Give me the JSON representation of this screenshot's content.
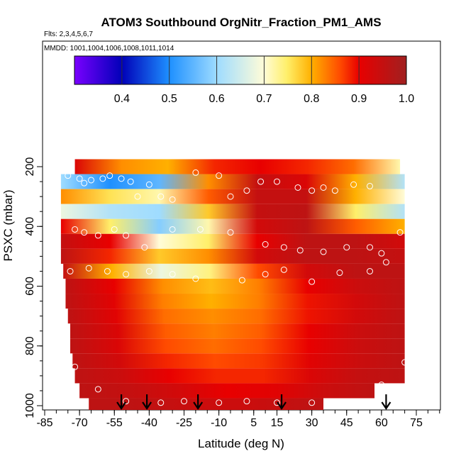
{
  "chart_data": {
    "type": "heatmap",
    "title": "ATOM3 Southbound OrgNitr_Fraction_PM1_AMS",
    "subtitle_flights": "Flts: 2,3,4,5,6,7",
    "subtitle_dates": "MMDD: 1001,1004,1006,1008,1011,1014",
    "xlabel": "Latitude (deg N)",
    "ylabel": "PSXC (mbar)",
    "xlim": [
      -85,
      85
    ],
    "ylim": [
      1000,
      150
    ],
    "xticks": [
      -85,
      -70,
      -55,
      -40,
      -25,
      -10,
      5,
      15,
      30,
      45,
      60,
      75
    ],
    "xtick_labels": [
      "-85",
      "-70",
      "-55",
      "-40",
      "-25",
      "-10",
      "5",
      "15",
      "30",
      "45",
      "60",
      "75"
    ],
    "yticks": [
      200,
      400,
      600,
      800,
      1000
    ],
    "ytick_labels": [
      "200",
      "400",
      "600",
      "800",
      "1000"
    ],
    "colorbar": {
      "range": [
        0.3,
        1.0
      ],
      "ticks": [
        0.4,
        0.5,
        0.6,
        0.7,
        0.8,
        0.9,
        1.0
      ],
      "tick_labels": [
        "0.4",
        "0.5",
        "0.6",
        "0.7",
        "0.8",
        "0.9",
        "1.0"
      ]
    },
    "rows": [
      {
        "p": 1000,
        "lat_min": -66,
        "lat_max": 35,
        "values": [
          0.96,
          0.96,
          0.95,
          0.94,
          0.94,
          0.95,
          0.96
        ]
      },
      {
        "p": 950,
        "lat_min": -70,
        "lat_max": 57,
        "values": [
          0.96,
          0.95,
          0.93,
          0.9,
          0.91,
          0.94,
          0.96
        ]
      },
      {
        "p": 900,
        "lat_min": -72,
        "lat_max": 70,
        "values": [
          0.96,
          0.94,
          0.9,
          0.88,
          0.88,
          0.92,
          0.95,
          0.96
        ]
      },
      {
        "p": 850,
        "lat_min": -73,
        "lat_max": 70,
        "values": [
          0.96,
          0.93,
          0.88,
          0.86,
          0.87,
          0.91,
          0.94,
          0.96
        ]
      },
      {
        "p": 800,
        "lat_min": -74,
        "lat_max": 70,
        "values": [
          0.96,
          0.92,
          0.86,
          0.84,
          0.86,
          0.9,
          0.94,
          0.96
        ]
      },
      {
        "p": 750,
        "lat_min": -74,
        "lat_max": 70,
        "values": [
          0.96,
          0.92,
          0.85,
          0.83,
          0.85,
          0.9,
          0.94,
          0.96
        ]
      },
      {
        "p": 700,
        "lat_min": -75,
        "lat_max": 70,
        "values": [
          0.96,
          0.91,
          0.84,
          0.82,
          0.84,
          0.89,
          0.93,
          0.96
        ]
      },
      {
        "p": 650,
        "lat_min": -76,
        "lat_max": 70,
        "values": [
          0.96,
          0.91,
          0.83,
          0.8,
          0.83,
          0.89,
          0.93,
          0.96
        ]
      },
      {
        "p": 600,
        "lat_min": -76,
        "lat_max": 70,
        "values": [
          0.96,
          0.9,
          0.82,
          0.79,
          0.83,
          0.9,
          0.94,
          0.96
        ]
      },
      {
        "p": 550,
        "lat_min": -77,
        "lat_max": 70,
        "values": [
          0.95,
          0.8,
          0.68,
          0.74,
          0.86,
          0.93,
          0.96,
          0.96
        ]
      },
      {
        "p": 500,
        "lat_min": -78,
        "lat_max": 70,
        "values": [
          0.96,
          0.88,
          0.78,
          0.82,
          0.93,
          0.96,
          0.96,
          0.95
        ]
      },
      {
        "p": 450,
        "lat_min": -78,
        "lat_max": 70,
        "values": [
          0.95,
          0.9,
          0.7,
          0.75,
          0.9,
          0.96,
          0.96,
          0.93
        ]
      },
      {
        "p": 400,
        "lat_min": -78,
        "lat_max": 70,
        "values": [
          0.9,
          0.75,
          0.58,
          0.72,
          0.93,
          0.96,
          0.85,
          0.8
        ]
      },
      {
        "p": 350,
        "lat_min": -78,
        "lat_max": 70,
        "values": [
          0.68,
          0.62,
          0.6,
          0.78,
          0.95,
          0.96,
          0.75,
          0.62
        ]
      },
      {
        "p": 300,
        "lat_min": -78,
        "lat_max": 70,
        "values": [
          0.82,
          0.76,
          0.72,
          0.85,
          0.95,
          0.95,
          0.8,
          0.7
        ]
      },
      {
        "p": 250,
        "lat_min": -78,
        "lat_max": 70,
        "values": [
          0.6,
          0.5,
          0.55,
          0.82,
          0.95,
          0.92,
          0.8,
          0.62
        ]
      },
      {
        "p": 200,
        "lat_min": -72,
        "lat_max": 68,
        "values": [
          0.92,
          0.82,
          0.8,
          0.88,
          0.9,
          0.88,
          0.84,
          0.72
        ]
      }
    ],
    "observations": [
      [
        -75,
        230
      ],
      [
        -70,
        240
      ],
      [
        -68,
        255
      ],
      [
        -65,
        245
      ],
      [
        -60,
        240
      ],
      [
        -57,
        230
      ],
      [
        -52,
        240
      ],
      [
        -48,
        250
      ],
      [
        -45,
        300
      ],
      [
        -40,
        260
      ],
      [
        -35,
        300
      ],
      [
        -30,
        310
      ],
      [
        -20,
        220
      ],
      [
        -10,
        230
      ],
      [
        -5,
        300
      ],
      [
        2,
        280
      ],
      [
        8,
        250
      ],
      [
        15,
        250
      ],
      [
        24,
        270
      ],
      [
        30,
        280
      ],
      [
        35,
        270
      ],
      [
        40,
        280
      ],
      [
        48,
        260
      ],
      [
        55,
        265
      ],
      [
        -72,
        410
      ],
      [
        -68,
        420
      ],
      [
        -62,
        430
      ],
      [
        -55,
        410
      ],
      [
        -50,
        430
      ],
      [
        -42,
        470
      ],
      [
        -30,
        410
      ],
      [
        -18,
        410
      ],
      [
        -5,
        420
      ],
      [
        10,
        460
      ],
      [
        18,
        470
      ],
      [
        25,
        480
      ],
      [
        35,
        485
      ],
      [
        45,
        470
      ],
      [
        55,
        470
      ],
      [
        60,
        490
      ],
      [
        68,
        420
      ],
      [
        -74,
        550
      ],
      [
        -66,
        540
      ],
      [
        -58,
        550
      ],
      [
        -50,
        560
      ],
      [
        -40,
        550
      ],
      [
        -30,
        560
      ],
      [
        -20,
        575
      ],
      [
        0,
        580
      ],
      [
        10,
        560
      ],
      [
        18,
        545
      ],
      [
        30,
        585
      ],
      [
        42,
        555
      ],
      [
        55,
        550
      ],
      [
        62,
        520
      ],
      [
        -72,
        870
      ],
      [
        -62,
        945
      ],
      [
        -50,
        985
      ],
      [
        -35,
        990
      ],
      [
        -25,
        985
      ],
      [
        -10,
        990
      ],
      [
        2,
        985
      ],
      [
        15,
        990
      ],
      [
        30,
        990
      ],
      [
        60,
        930
      ],
      [
        70,
        855
      ]
    ],
    "arrow_latitudes": [
      -52,
      -41,
      -19,
      17,
      62
    ]
  }
}
